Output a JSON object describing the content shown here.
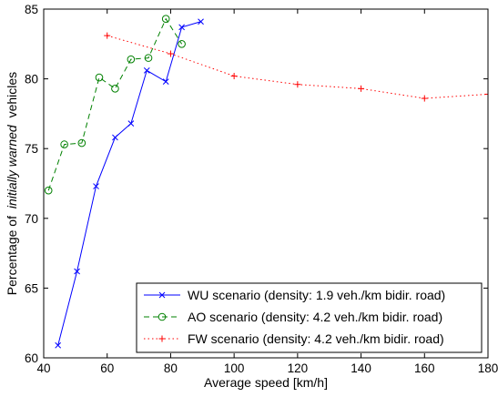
{
  "chart_data": {
    "type": "line",
    "xlabel": "Average speed [km/h]",
    "ylabel_parts": {
      "prefix": "Percentage of",
      "emphasis": "initially warned",
      "suffix": "vehicles"
    },
    "xlim": [
      40,
      180
    ],
    "ylim": [
      60,
      85
    ],
    "xticks": [
      40,
      60,
      80,
      100,
      120,
      140,
      160,
      180
    ],
    "yticks": [
      60,
      65,
      70,
      75,
      80,
      85
    ],
    "grid": false,
    "legend_position": "bottom-right",
    "series": [
      {
        "name": "WU scenario (density: 1.9 veh./km bidir. road)",
        "color": "#0000ff",
        "line_style": "solid",
        "marker": "x",
        "x": [
          44.5,
          50.5,
          56.5,
          62.5,
          67.5,
          72.5,
          78.5,
          83.5,
          89.5
        ],
        "y": [
          60.9,
          66.2,
          72.3,
          75.8,
          76.8,
          80.6,
          79.8,
          83.7,
          84.1
        ]
      },
      {
        "name": "AO scenario (density: 4.2 veh./km bidir. road)",
        "color": "#008000",
        "line_style": "dashed",
        "marker": "o",
        "x": [
          41.5,
          46.5,
          52,
          57.5,
          62.5,
          67.5,
          73,
          78.5,
          83.5
        ],
        "y": [
          72.0,
          75.3,
          75.4,
          80.1,
          79.3,
          81.4,
          81.5,
          84.3,
          82.5
        ]
      },
      {
        "name": "FW scenario (density: 4.2 veh./km bidir. road)",
        "color": "#ff0000",
        "line_style": "dotted",
        "marker": "+",
        "x": [
          60,
          80,
          100,
          120,
          140,
          160,
          180
        ],
        "y": [
          83.1,
          81.8,
          80.2,
          79.6,
          79.3,
          78.6,
          78.9
        ]
      }
    ]
  }
}
